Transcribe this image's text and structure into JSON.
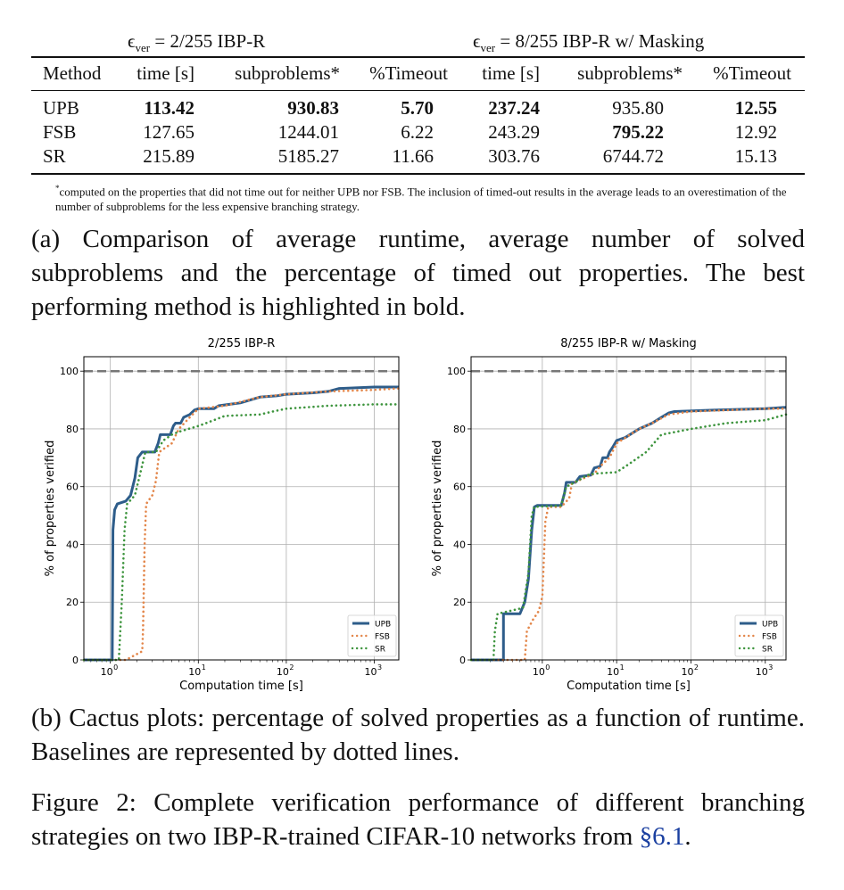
{
  "table": {
    "group_headers": [
      {
        "eps": "ϵ",
        "sub": "ver",
        "rest": " = 2/255 IBP-R"
      },
      {
        "eps": "ϵ",
        "sub": "ver",
        "rest": " = 8/255 IBP-R w/ Masking"
      }
    ],
    "columns": [
      "Method",
      "time [s]",
      "subproblems*",
      "%Timeout",
      "time [s]",
      "subproblems*",
      "%Timeout"
    ],
    "rows": [
      {
        "method": "UPB",
        "cells": [
          "113.42",
          "930.83",
          "5.70",
          "237.24",
          "935.80",
          "12.55"
        ],
        "bold": [
          true,
          true,
          true,
          true,
          false,
          true
        ]
      },
      {
        "method": "FSB",
        "cells": [
          "127.65",
          "1244.01",
          "6.22",
          "243.29",
          "795.22",
          "12.92"
        ],
        "bold": [
          false,
          false,
          false,
          false,
          true,
          false
        ]
      },
      {
        "method": "SR",
        "cells": [
          "215.89",
          "5185.27",
          "11.66",
          "303.76",
          "6744.72",
          "15.13"
        ],
        "bold": [
          false,
          false,
          false,
          false,
          false,
          false
        ]
      }
    ],
    "footnote_mark": "*",
    "footnote": "computed on the properties that did not time out for neither UPB nor FSB. The inclusion of timed-out results in the average leads to an overestimation of the number of subproblems for the less expensive branching strategy."
  },
  "caption_a": "(a) Comparison of average runtime, average number of solved subproblems and the percentage of timed out properties. The best performing method is highlighted in bold.",
  "caption_b": "(b) Cactus plots: percentage of solved properties as a function of runtime. Baselines are represented by dotted lines.",
  "caption_fig": "Figure 2:  Complete verification performance of different branching strategies on two IBP-R-trained CIFAR-10 networks from ",
  "caption_fig_ref": "§6.1",
  "caption_fig_end": ".",
  "colors": {
    "UPB": "#2e5d8a",
    "FSB": "#e3864a",
    "SR": "#3d943d",
    "ref": "#777777"
  },
  "chart_data": [
    {
      "type": "line",
      "title": "2/255 IBP-R",
      "xlabel": "Computation time [s]",
      "ylabel": "% of properties verified",
      "xscale": "log",
      "xlim": [
        0.5,
        1900
      ],
      "ylim": [
        0,
        105
      ],
      "xticks": [
        {
          "v": 1,
          "label": "10",
          "exp": "0"
        },
        {
          "v": 10,
          "label": "10",
          "exp": "1"
        },
        {
          "v": 100,
          "label": "10",
          "exp": "2"
        },
        {
          "v": 1000,
          "label": "10",
          "exp": "3"
        }
      ],
      "yticks": [
        0,
        20,
        40,
        60,
        80,
        100
      ],
      "reference_line": 100,
      "grid": true,
      "legend": "bottom-right",
      "series": [
        {
          "name": "UPB",
          "style": "solid",
          "points": [
            [
              0.5,
              0
            ],
            [
              1.05,
              0
            ],
            [
              1.07,
              45
            ],
            [
              1.12,
              52
            ],
            [
              1.2,
              54
            ],
            [
              1.5,
              55
            ],
            [
              1.7,
              57
            ],
            [
              1.9,
              63
            ],
            [
              2.05,
              70
            ],
            [
              2.3,
              72
            ],
            [
              3.2,
              72
            ],
            [
              3.5,
              75
            ],
            [
              3.7,
              78
            ],
            [
              4.8,
              78
            ],
            [
              5.2,
              81
            ],
            [
              5.5,
              82
            ],
            [
              6.3,
              82
            ],
            [
              6.8,
              84
            ],
            [
              8,
              85
            ],
            [
              9,
              86.5
            ],
            [
              10,
              87
            ],
            [
              15,
              87
            ],
            [
              17,
              88
            ],
            [
              30,
              89
            ],
            [
              50,
              91
            ],
            [
              80,
              91.5
            ],
            [
              100,
              92
            ],
            [
              200,
              92.5
            ],
            [
              300,
              93
            ],
            [
              400,
              94
            ],
            [
              1000,
              94.5
            ],
            [
              1900,
              94.5
            ]
          ]
        },
        {
          "name": "FSB",
          "style": "dotted",
          "points": [
            [
              0.5,
              0
            ],
            [
              1.5,
              0
            ],
            [
              2.3,
              3
            ],
            [
              2.35,
              10
            ],
            [
              2.45,
              40
            ],
            [
              2.55,
              54
            ],
            [
              3,
              57
            ],
            [
              3.3,
              62
            ],
            [
              3.6,
              72
            ],
            [
              4,
              73
            ],
            [
              5,
              75
            ],
            [
              6,
              80
            ],
            [
              8,
              84
            ],
            [
              10,
              87
            ],
            [
              20,
              88
            ],
            [
              50,
              91
            ],
            [
              100,
              92
            ],
            [
              300,
              93
            ],
            [
              1000,
              93.5
            ],
            [
              1900,
              94
            ]
          ]
        },
        {
          "name": "SR",
          "style": "dotted",
          "points": [
            [
              0.5,
              0
            ],
            [
              1.25,
              0
            ],
            [
              1.35,
              20
            ],
            [
              1.45,
              45
            ],
            [
              1.55,
              54
            ],
            [
              1.9,
              57
            ],
            [
              2.2,
              65
            ],
            [
              2.5,
              72
            ],
            [
              3.3,
              72
            ],
            [
              4,
              76
            ],
            [
              5,
              78
            ],
            [
              6,
              79
            ],
            [
              10,
              81
            ],
            [
              15,
              83
            ],
            [
              20,
              84.5
            ],
            [
              50,
              85
            ],
            [
              70,
              86
            ],
            [
              100,
              87
            ],
            [
              300,
              88
            ],
            [
              1000,
              88.5
            ],
            [
              1900,
              88.5
            ]
          ]
        }
      ]
    },
    {
      "type": "line",
      "title": "8/255 IBP-R w/ Masking",
      "xlabel": "Computation time [s]",
      "ylabel": "% of properties verified",
      "xscale": "log",
      "xlim": [
        0.11,
        1900
      ],
      "ylim": [
        0,
        105
      ],
      "xticks": [
        {
          "v": 1,
          "label": "10",
          "exp": "0"
        },
        {
          "v": 10,
          "label": "10",
          "exp": "1"
        },
        {
          "v": 100,
          "label": "10",
          "exp": "2"
        },
        {
          "v": 1000,
          "label": "10",
          "exp": "3"
        }
      ],
      "yticks": [
        0,
        20,
        40,
        60,
        80,
        100
      ],
      "reference_line": 100,
      "grid": true,
      "legend": "bottom-right",
      "series": [
        {
          "name": "UPB",
          "style": "solid",
          "points": [
            [
              0.11,
              0
            ],
            [
              0.3,
              0
            ],
            [
              0.3,
              16
            ],
            [
              0.5,
              16
            ],
            [
              0.58,
              20
            ],
            [
              0.65,
              28
            ],
            [
              0.72,
              45
            ],
            [
              0.78,
              53
            ],
            [
              0.85,
              53.5
            ],
            [
              1.8,
              53.5
            ],
            [
              2,
              58
            ],
            [
              2.1,
              61.5
            ],
            [
              2.8,
              61.5
            ],
            [
              3.2,
              63.5
            ],
            [
              4.5,
              64
            ],
            [
              5,
              66.5
            ],
            [
              6,
              67
            ],
            [
              6.5,
              70
            ],
            [
              7.5,
              70
            ],
            [
              8,
              72
            ],
            [
              9,
              74
            ],
            [
              10,
              76
            ],
            [
              13,
              77
            ],
            [
              20,
              80
            ],
            [
              30,
              82
            ],
            [
              40,
              84
            ],
            [
              50,
              85.5
            ],
            [
              60,
              86
            ],
            [
              200,
              86.5
            ],
            [
              1000,
              87
            ],
            [
              1900,
              87.5
            ]
          ]
        },
        {
          "name": "FSB",
          "style": "dotted",
          "points": [
            [
              0.11,
              0
            ],
            [
              0.58,
              0
            ],
            [
              0.62,
              10
            ],
            [
              0.75,
              14
            ],
            [
              0.9,
              17
            ],
            [
              1.0,
              22
            ],
            [
              1.05,
              35
            ],
            [
              1.1,
              48
            ],
            [
              1.2,
              53
            ],
            [
              1.8,
              53
            ],
            [
              2.3,
              56
            ],
            [
              2.5,
              61
            ],
            [
              3,
              62
            ],
            [
              5,
              64.5
            ],
            [
              6,
              67
            ],
            [
              8,
              70
            ],
            [
              10,
              75
            ],
            [
              20,
              80
            ],
            [
              30,
              82
            ],
            [
              50,
              85
            ],
            [
              100,
              86
            ],
            [
              1000,
              87
            ],
            [
              1900,
              87
            ]
          ]
        },
        {
          "name": "SR",
          "style": "dotted",
          "points": [
            [
              0.11,
              0
            ],
            [
              0.22,
              0
            ],
            [
              0.23,
              10
            ],
            [
              0.25,
              16
            ],
            [
              0.55,
              18
            ],
            [
              0.65,
              30
            ],
            [
              0.72,
              50
            ],
            [
              0.78,
              53
            ],
            [
              1.8,
              53.5
            ],
            [
              2.1,
              60
            ],
            [
              3,
              62
            ],
            [
              4,
              64
            ],
            [
              5,
              64.5
            ],
            [
              10,
              65
            ],
            [
              15,
              68
            ],
            [
              25,
              72
            ],
            [
              40,
              78
            ],
            [
              100,
              80
            ],
            [
              300,
              82
            ],
            [
              1000,
              83
            ],
            [
              1900,
              85
            ]
          ]
        }
      ]
    }
  ]
}
